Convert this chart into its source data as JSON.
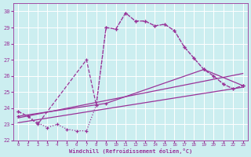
{
  "xlabel": "Windchill (Refroidissement éolien,°C)",
  "bg_color": "#cceef0",
  "grid_color": "#ffffff",
  "line_color": "#993399",
  "ylim": [
    22,
    30.5
  ],
  "xlim": [
    -0.5,
    23.5
  ],
  "yticks": [
    22,
    23,
    24,
    25,
    26,
    27,
    28,
    29,
    30
  ],
  "xticks": [
    0,
    1,
    2,
    3,
    4,
    5,
    6,
    7,
    8,
    9,
    10,
    11,
    12,
    13,
    14,
    15,
    16,
    17,
    18,
    19,
    20,
    21,
    22,
    23
  ],
  "series1_x": [
    0,
    1,
    2,
    3,
    4,
    5,
    6,
    7,
    8,
    9,
    10,
    11,
    12,
    13,
    14,
    15,
    16,
    17,
    18,
    19,
    20,
    21,
    22,
    23
  ],
  "series1_y": [
    23.8,
    23.5,
    23.1,
    22.8,
    23.0,
    22.7,
    22.6,
    22.6,
    24.2,
    29.0,
    28.9,
    29.9,
    29.4,
    29.4,
    29.1,
    29.2,
    28.8,
    27.8,
    27.1,
    26.4,
    26.0,
    25.5,
    25.2,
    25.4
  ],
  "series2_x": [
    0,
    1,
    2,
    7,
    8,
    9,
    10,
    11,
    12,
    13,
    14,
    15,
    16,
    17,
    18,
    19,
    20,
    21,
    22,
    23
  ],
  "series2_y": [
    23.8,
    23.5,
    23.0,
    27.0,
    24.2,
    29.0,
    28.9,
    29.9,
    29.4,
    29.4,
    29.1,
    29.2,
    28.8,
    27.8,
    27.1,
    26.4,
    26.0,
    25.5,
    25.2,
    25.4
  ],
  "series3_x": [
    0,
    9,
    19,
    23
  ],
  "series3_y": [
    23.5,
    24.3,
    26.4,
    25.4
  ],
  "series4_x": [
    0,
    23
  ],
  "series4_y": [
    23.1,
    25.3
  ],
  "series5_x": [
    0,
    23
  ],
  "series5_y": [
    23.4,
    26.15
  ]
}
